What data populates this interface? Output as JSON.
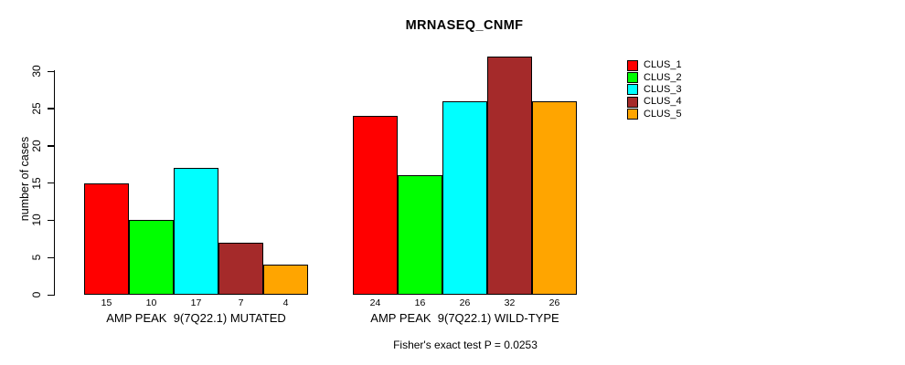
{
  "chart_data": {
    "type": "bar",
    "title": "MRNASEQ_CNMF",
    "ylabel": "number of cases",
    "xlabel": "",
    "yticks": [
      0,
      5,
      10,
      15,
      20,
      25,
      30
    ],
    "ylim": [
      0,
      32
    ],
    "grid": false,
    "legend_position": "right",
    "series": [
      "CLUS_1",
      "CLUS_2",
      "CLUS_3",
      "CLUS_4",
      "CLUS_5"
    ],
    "series_colors": [
      "#FF0000",
      "#00FF00",
      "#00FFFF",
      "#A52A2A",
      "#FFA500"
    ],
    "groups": [
      {
        "label": "AMP PEAK  9(7Q22.1) MUTATED",
        "values": [
          15,
          10,
          17,
          7,
          4
        ]
      },
      {
        "label": "AMP PEAK  9(7Q22.1) WILD-TYPE",
        "values": [
          24,
          16,
          26,
          32,
          26
        ]
      }
    ],
    "annotation": "Fisher's exact test P = 0.0253"
  }
}
